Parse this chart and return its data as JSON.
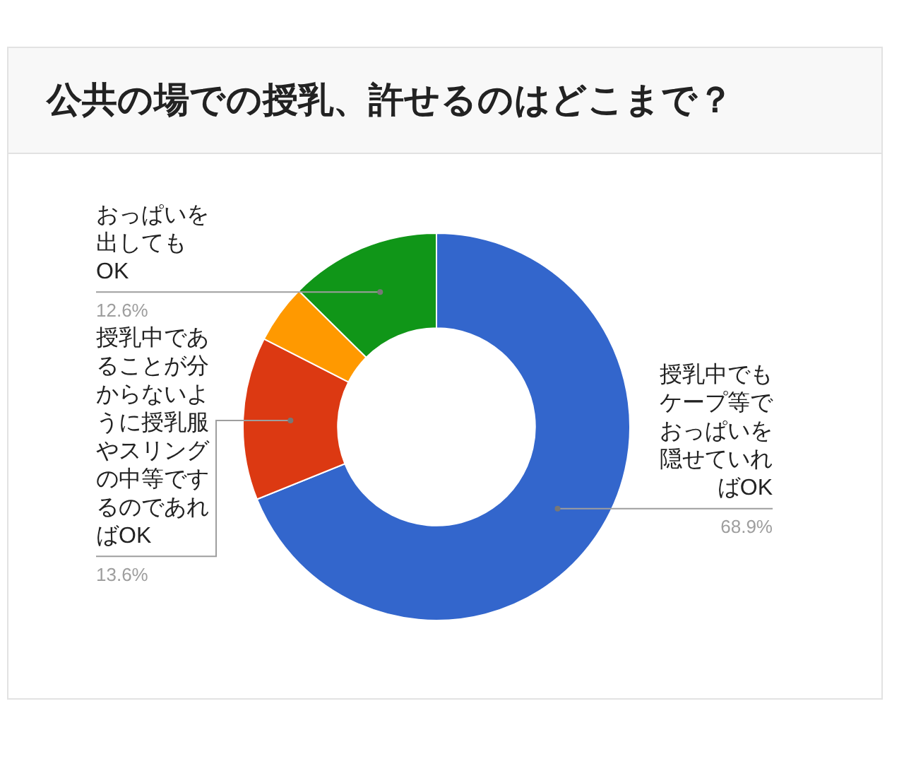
{
  "chart_data": {
    "type": "donut",
    "title": "公共の場での授乳、許せるのはどこまで？",
    "categories": [
      "授乳中でもケープ等でおっぱいを隠せていればOK",
      "授乳中であることが分からないように授乳服やスリングの中等でするのであればOK",
      null,
      "おっぱいを出してもOK"
    ],
    "values": [
      68.9,
      13.6,
      4.9,
      12.6
    ],
    "colors": [
      "#3366cc",
      "#dc3912",
      "#ff9900",
      "#109618"
    ],
    "value_labels": [
      "68.9%",
      "13.6%",
      null,
      "12.6%"
    ]
  }
}
